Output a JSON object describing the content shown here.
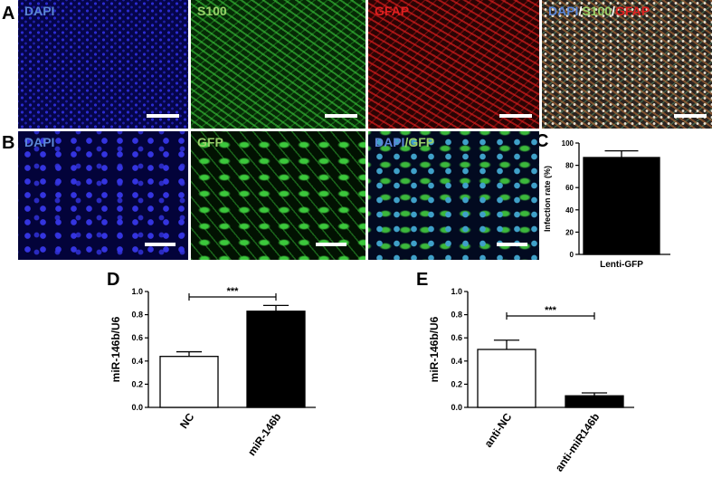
{
  "panel_letters": {
    "a": "A",
    "b": "B",
    "c": "C",
    "d": "D",
    "e": "E"
  },
  "row_a": {
    "dapi": "DAPI",
    "s100": "S100",
    "gfap": "GFAP",
    "merge": {
      "dapi": "DAPI",
      "sep1": "/",
      "s100": "S100",
      "sep2": "/",
      "gfap": "GFAP"
    }
  },
  "row_b": {
    "dapi": "DAPI",
    "gfp": "GFP",
    "merge": {
      "dapi": "DAPI",
      "sep": "/",
      "gfp": "GFP"
    }
  },
  "colors": {
    "dapi_blue": "#2d2dd8",
    "dapi_label": "#5b86d6",
    "green": "#33c833",
    "green_label": "#9ad16a",
    "red": "#e02020",
    "red_label": "#e02020"
  },
  "chart_data": [
    {
      "id": "C",
      "type": "bar",
      "categories": [
        "Lenti-GFP"
      ],
      "values": [
        87
      ],
      "errors": [
        6
      ],
      "ylabel": "Infection rate (%)",
      "ylim": [
        0,
        100
      ],
      "yticks": [
        "0",
        "20",
        "40",
        "60",
        "80",
        "100"
      ],
      "bar_fill": [
        "#000000"
      ]
    },
    {
      "id": "D",
      "type": "bar",
      "categories": [
        "NC",
        "miR-146b"
      ],
      "values": [
        0.44,
        0.83
      ],
      "errors": [
        0.04,
        0.05
      ],
      "ylabel": "miR-146b/U6",
      "ylim": [
        0,
        1.0
      ],
      "yticks": [
        "0.0",
        "0.2",
        "0.4",
        "0.6",
        "0.8",
        "1.0"
      ],
      "bar_fill": [
        "#ffffff",
        "#000000"
      ],
      "significance": "***"
    },
    {
      "id": "E",
      "type": "bar",
      "categories": [
        "anti-NC",
        "anti-miR146b"
      ],
      "values": [
        0.5,
        0.1
      ],
      "errors": [
        0.08,
        0.025
      ],
      "ylabel": "miR-146b/U6",
      "ylim": [
        0,
        1.0
      ],
      "yticks": [
        "0.0",
        "0.2",
        "0.4",
        "0.6",
        "0.8",
        "1.0"
      ],
      "bar_fill": [
        "#ffffff",
        "#000000"
      ],
      "significance": "***"
    }
  ]
}
